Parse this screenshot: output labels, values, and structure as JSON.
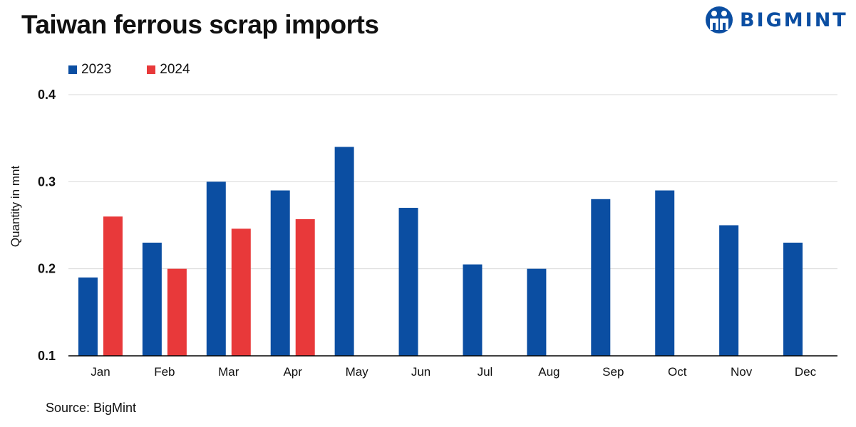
{
  "header": {
    "title": "Taiwan ferrous scrap imports",
    "brand": "BIGMINT"
  },
  "footer": {
    "source": "Source: BigMint"
  },
  "colors": {
    "series_2023": "#0b4ea2",
    "series_2024": "#e8393a",
    "grid": "#d9d9d9",
    "brand": "#0b4ea2"
  },
  "chart_data": {
    "type": "bar",
    "title": "Taiwan ferrous scrap imports",
    "xlabel": "",
    "ylabel": "Quantity in mnt",
    "ylim": [
      0.1,
      0.4
    ],
    "yticks": [
      "0.1",
      "0.2",
      "0.3",
      "0.4"
    ],
    "yticks_values": [
      0.1,
      0.2,
      0.3,
      0.4
    ],
    "grid": true,
    "legend_position": "top-left",
    "categories": [
      "Jan",
      "Feb",
      "Mar",
      "Apr",
      "May",
      "Jun",
      "Jul",
      "Aug",
      "Sep",
      "Oct",
      "Nov",
      "Dec"
    ],
    "series": [
      {
        "name": "2023",
        "color": "#0b4ea2",
        "values": [
          0.19,
          0.23,
          0.3,
          0.29,
          0.34,
          0.27,
          0.205,
          0.2,
          0.28,
          0.29,
          0.25,
          0.23
        ]
      },
      {
        "name": "2024",
        "color": "#e8393a",
        "values": [
          0.26,
          0.2,
          0.246,
          0.257,
          null,
          null,
          null,
          null,
          null,
          null,
          null,
          null
        ]
      }
    ]
  }
}
